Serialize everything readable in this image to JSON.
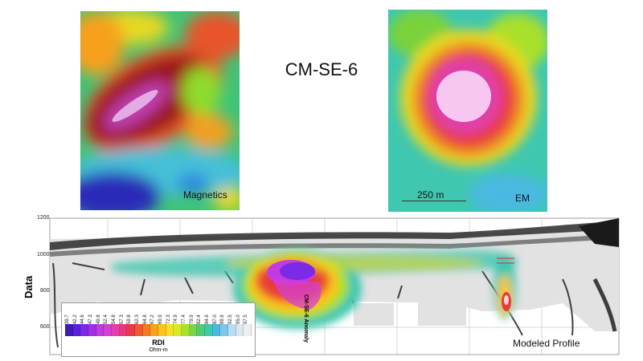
{
  "title": "CM-SE-6",
  "magnetics_label": "Magnetics",
  "em_label": "EM",
  "scale_bar_label": "250 m",
  "profile": {
    "ylabel": "Data",
    "yticks": [
      "1200",
      "1000",
      "800",
      "600"
    ],
    "anomaly_label": "CM-SE-6 Anomaly",
    "profile_label": "Modeled Profile"
  },
  "legend": {
    "title": "RDI",
    "unit": "Ohm-m",
    "values": [
      "39.7",
      "42.2",
      "44.6",
      "47.3",
      "49.8",
      "52.4",
      "54.8",
      "57.3",
      "59.8",
      "62.3",
      "64.8",
      "67.2",
      "69.9",
      "72.3",
      "74.9",
      "77.4",
      "79.9",
      "82.4",
      "84.9",
      "87.0",
      "89.9",
      "92.5",
      "95.0",
      "97.5"
    ],
    "colors": [
      "#3a1fb0",
      "#5a22d8",
      "#7b2ae6",
      "#a12fe8",
      "#c23ae0",
      "#d63fd0",
      "#e63da8",
      "#e8377a",
      "#e83a4a",
      "#ee5a2c",
      "#f47a22",
      "#f8a21e",
      "#fbc51f",
      "#f6e124",
      "#d8ea24",
      "#a8e02c",
      "#78d44a",
      "#4fcc78",
      "#3fc7b0",
      "#49b9e0",
      "#7ec7ec",
      "#b8dcf2",
      "#dde6ee",
      "#eeeeee"
    ]
  }
}
